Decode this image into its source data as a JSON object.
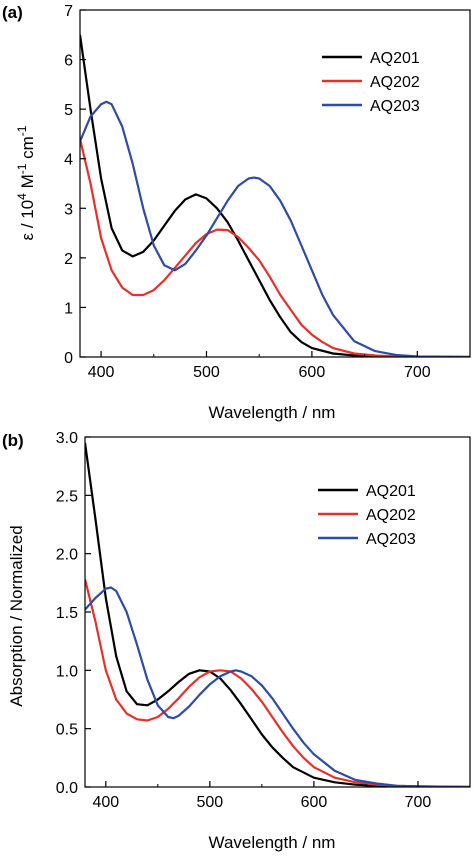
{
  "chart_data": [
    {
      "panel_label": "(a)",
      "type": "line",
      "xlabel": "Wavelength / nm",
      "ylabel": "ε / 10",
      "ylabel_exp1": "4",
      "ylabel_mid": " M",
      "ylabel_exp2": "-1",
      "ylabel_mid2": " cm",
      "ylabel_exp3": "-1",
      "xlim": [
        380,
        750
      ],
      "ylim": [
        0,
        7
      ],
      "xticks": [
        400,
        500,
        600,
        700
      ],
      "yticks": [
        0,
        1,
        2,
        3,
        4,
        5,
        6,
        7
      ],
      "grid": false,
      "legend_position": "top-right",
      "series": [
        {
          "name": "AQ201",
          "color": "#000000",
          "x": [
            380,
            390,
            400,
            410,
            420,
            430,
            440,
            450,
            460,
            470,
            480,
            490,
            500,
            510,
            520,
            530,
            540,
            550,
            560,
            570,
            580,
            590,
            600,
            620,
            640,
            660,
            680,
            700,
            750
          ],
          "y": [
            6.5,
            5.0,
            3.6,
            2.6,
            2.15,
            2.03,
            2.12,
            2.35,
            2.65,
            2.95,
            3.18,
            3.28,
            3.2,
            3.0,
            2.72,
            2.35,
            1.95,
            1.55,
            1.15,
            0.8,
            0.5,
            0.3,
            0.18,
            0.07,
            0.03,
            0.01,
            0.005,
            0.0,
            0.0
          ]
        },
        {
          "name": "AQ202",
          "color": "#e8302a",
          "x": [
            380,
            390,
            400,
            410,
            420,
            430,
            440,
            450,
            460,
            470,
            480,
            490,
            500,
            510,
            520,
            530,
            540,
            550,
            560,
            570,
            580,
            590,
            600,
            610,
            620,
            640,
            660,
            680,
            750
          ],
          "y": [
            4.4,
            3.5,
            2.4,
            1.75,
            1.4,
            1.25,
            1.25,
            1.35,
            1.55,
            1.8,
            2.05,
            2.3,
            2.48,
            2.57,
            2.56,
            2.42,
            2.2,
            1.95,
            1.62,
            1.25,
            0.95,
            0.65,
            0.45,
            0.3,
            0.18,
            0.07,
            0.03,
            0.01,
            0.0
          ]
        },
        {
          "name": "AQ203",
          "color": "#2d4ba8",
          "x": [
            380,
            390,
            400,
            405,
            410,
            420,
            430,
            440,
            450,
            460,
            470,
            480,
            490,
            500,
            510,
            520,
            530,
            540,
            545,
            550,
            560,
            570,
            580,
            590,
            600,
            610,
            620,
            640,
            660,
            680,
            700,
            750
          ],
          "y": [
            4.35,
            4.85,
            5.1,
            5.15,
            5.1,
            4.65,
            3.9,
            3.0,
            2.25,
            1.85,
            1.75,
            1.88,
            2.15,
            2.45,
            2.8,
            3.15,
            3.45,
            3.6,
            3.62,
            3.6,
            3.45,
            3.15,
            2.75,
            2.25,
            1.75,
            1.25,
            0.85,
            0.32,
            0.12,
            0.04,
            0.01,
            0.0
          ]
        }
      ]
    },
    {
      "panel_label": "(b)",
      "type": "line",
      "xlabel": "Wavelength / nm",
      "ylabel": "Absorption / Normalized",
      "xlim": [
        380,
        750
      ],
      "ylim": [
        0,
        3.0
      ],
      "xticks": [
        400,
        500,
        600,
        700
      ],
      "yticks": [
        0.0,
        0.5,
        1.0,
        1.5,
        2.0,
        2.5,
        3.0
      ],
      "ytick_labels": [
        "0.0",
        "0.5",
        "1.0",
        "1.5",
        "2.0",
        "2.5",
        "3.0"
      ],
      "grid": false,
      "legend_position": "top-right",
      "series": [
        {
          "name": "AQ201",
          "color": "#000000",
          "x": [
            380,
            390,
            400,
            410,
            420,
            430,
            440,
            450,
            460,
            470,
            480,
            490,
            500,
            510,
            520,
            530,
            540,
            550,
            560,
            570,
            580,
            600,
            620,
            640,
            660,
            680,
            700,
            750
          ],
          "y": [
            2.95,
            2.3,
            1.62,
            1.12,
            0.82,
            0.71,
            0.7,
            0.75,
            0.82,
            0.9,
            0.97,
            1.0,
            0.99,
            0.93,
            0.83,
            0.71,
            0.58,
            0.45,
            0.34,
            0.25,
            0.17,
            0.08,
            0.04,
            0.02,
            0.01,
            0.005,
            0.0,
            0.0
          ]
        },
        {
          "name": "AQ202",
          "color": "#e8302a",
          "x": [
            380,
            390,
            400,
            410,
            420,
            430,
            440,
            450,
            460,
            470,
            480,
            490,
            500,
            510,
            520,
            530,
            540,
            550,
            560,
            570,
            580,
            590,
            600,
            620,
            640,
            660,
            680,
            700,
            750
          ],
          "y": [
            1.78,
            1.42,
            1.0,
            0.75,
            0.63,
            0.58,
            0.57,
            0.6,
            0.67,
            0.76,
            0.86,
            0.94,
            0.99,
            1.0,
            0.99,
            0.93,
            0.84,
            0.73,
            0.6,
            0.47,
            0.35,
            0.25,
            0.17,
            0.08,
            0.04,
            0.02,
            0.01,
            0.005,
            0.0
          ]
        },
        {
          "name": "AQ203",
          "color": "#2d4ba8",
          "x": [
            380,
            390,
            400,
            405,
            410,
            420,
            430,
            440,
            450,
            460,
            465,
            470,
            480,
            490,
            500,
            510,
            520,
            525,
            530,
            540,
            550,
            560,
            570,
            580,
            590,
            600,
            620,
            640,
            660,
            680,
            700,
            750
          ],
          "y": [
            1.52,
            1.62,
            1.7,
            1.71,
            1.68,
            1.5,
            1.22,
            0.92,
            0.7,
            0.6,
            0.59,
            0.61,
            0.69,
            0.79,
            0.88,
            0.95,
            0.99,
            1.0,
            0.99,
            0.95,
            0.87,
            0.76,
            0.63,
            0.5,
            0.38,
            0.28,
            0.14,
            0.06,
            0.03,
            0.01,
            0.005,
            0.0
          ]
        }
      ]
    }
  ]
}
